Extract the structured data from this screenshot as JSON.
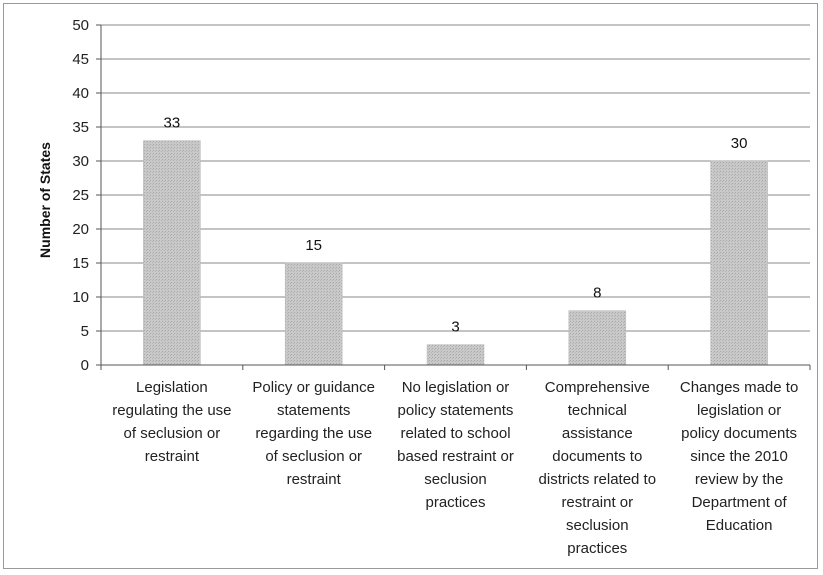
{
  "chart_data": {
    "type": "bar",
    "title": "",
    "xlabel": "",
    "ylabel": "Number of States",
    "ylim": [
      0,
      50
    ],
    "yticks": [
      0,
      5,
      10,
      15,
      20,
      25,
      30,
      35,
      40,
      45,
      50
    ],
    "grid": true,
    "legend": "none",
    "categories": [
      [
        "Legislation",
        "regulating the use",
        "of seclusion or",
        "restraint"
      ],
      [
        "Policy or guidance",
        "statements",
        "regarding the use",
        "of seclusion or",
        "restraint"
      ],
      [
        "No legislation or",
        "policy statements",
        "related to school",
        "based restraint or",
        "seclusion",
        "practices"
      ],
      [
        "Comprehensive",
        "technical",
        "assistance",
        "documents to",
        "districts related to",
        "restraint or",
        "seclusion",
        "practices"
      ],
      [
        "Changes made to",
        "legislation or",
        "policy documents",
        "since the 2010",
        "review by the",
        "Department of",
        "Education"
      ]
    ],
    "values": [
      33,
      15,
      3,
      8,
      30
    ],
    "data_labels": [
      "33",
      "15",
      "3",
      "8",
      "30"
    ],
    "bar_color": "#c4c4c4"
  }
}
